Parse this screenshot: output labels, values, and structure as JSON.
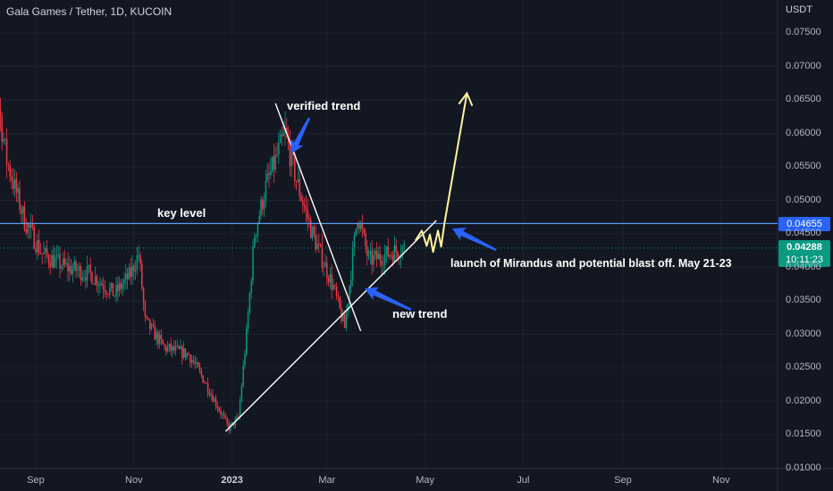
{
  "header": {
    "title": "Gala Games / Tether, 1D, KUCOIN",
    "currency": "USDT"
  },
  "annotations": {
    "verified_trend": "verified trend",
    "key_level": "key level",
    "new_trend": "new trend",
    "launch": "launch of Mirandus and potential blast off. May 21-23"
  },
  "badges": {
    "key_level_price": "0.04655",
    "last_price": "0.04288",
    "countdown": "10:11:23"
  },
  "colors": {
    "background": "#131722",
    "up": "#089981",
    "down": "#f23645",
    "key_level": "#5b9cf6",
    "trendline": "#ffffff",
    "projection": "#fff59d",
    "arrow": "#2962ff"
  },
  "chart_data": {
    "type": "candlestick",
    "y_ticks": [
      "0.07500",
      "0.07000",
      "0.06500",
      "0.06000",
      "0.05500",
      "0.05000",
      "0.04500",
      "0.04000",
      "0.03500",
      "0.03000",
      "0.02500",
      "0.02000",
      "0.01500",
      "0.01000"
    ],
    "x_ticks": [
      "Sep",
      "Nov",
      "2023",
      "Mar",
      "May",
      "Jul",
      "Sep",
      "Nov"
    ],
    "ylim": [
      0.01,
      0.078
    ],
    "key_level": 0.04655,
    "last_price": 0.04288,
    "price_path": [
      {
        "date": "2022-07-28",
        "close": 0.053
      },
      {
        "date": "2022-08-05",
        "close": 0.07
      },
      {
        "date": "2022-08-14",
        "close": 0.056
      },
      {
        "date": "2022-08-25",
        "close": 0.047
      },
      {
        "date": "2022-09-05",
        "close": 0.042
      },
      {
        "date": "2022-09-20",
        "close": 0.04
      },
      {
        "date": "2022-10-05",
        "close": 0.039
      },
      {
        "date": "2022-10-20",
        "close": 0.036
      },
      {
        "date": "2022-10-30",
        "close": 0.039
      },
      {
        "date": "2022-11-04",
        "close": 0.042
      },
      {
        "date": "2022-11-08",
        "close": 0.032
      },
      {
        "date": "2022-11-20",
        "close": 0.028
      },
      {
        "date": "2022-12-05",
        "close": 0.027
      },
      {
        "date": "2022-12-15",
        "close": 0.023
      },
      {
        "date": "2022-12-30",
        "close": 0.016
      },
      {
        "date": "2023-01-05",
        "close": 0.0175
      },
      {
        "date": "2023-01-10",
        "close": 0.03
      },
      {
        "date": "2023-01-15",
        "close": 0.045
      },
      {
        "date": "2023-01-22",
        "close": 0.052
      },
      {
        "date": "2023-02-03",
        "close": 0.06
      },
      {
        "date": "2023-02-10",
        "close": 0.053
      },
      {
        "date": "2023-02-20",
        "close": 0.045
      },
      {
        "date": "2023-03-05",
        "close": 0.037
      },
      {
        "date": "2023-03-12",
        "close": 0.031
      },
      {
        "date": "2023-03-20",
        "close": 0.048
      },
      {
        "date": "2023-03-27",
        "close": 0.041
      },
      {
        "date": "2023-04-08",
        "close": 0.042
      },
      {
        "date": "2023-04-18",
        "close": 0.043
      }
    ],
    "trendlines": [
      {
        "name": "verified trend",
        "from": {
          "date": "2023-01-28",
          "price": 0.0645
        },
        "to": {
          "date": "2023-03-22",
          "price": 0.0305
        }
      },
      {
        "name": "new trend",
        "from": {
          "date": "2022-12-28",
          "price": 0.0155
        },
        "to": {
          "date": "2023-05-08",
          "price": 0.047
        }
      }
    ],
    "projection": [
      {
        "date": "2023-04-25",
        "price": 0.044
      },
      {
        "date": "2023-04-29",
        "price": 0.0455
      },
      {
        "date": "2023-05-02",
        "price": 0.0432
      },
      {
        "date": "2023-05-04",
        "price": 0.0449
      },
      {
        "date": "2023-05-06",
        "price": 0.0423
      },
      {
        "date": "2023-05-09",
        "price": 0.0455
      },
      {
        "date": "2023-05-11",
        "price": 0.0431
      },
      {
        "date": "2023-05-13",
        "price": 0.0465
      },
      {
        "date": "2023-05-27",
        "price": 0.066
      }
    ]
  }
}
